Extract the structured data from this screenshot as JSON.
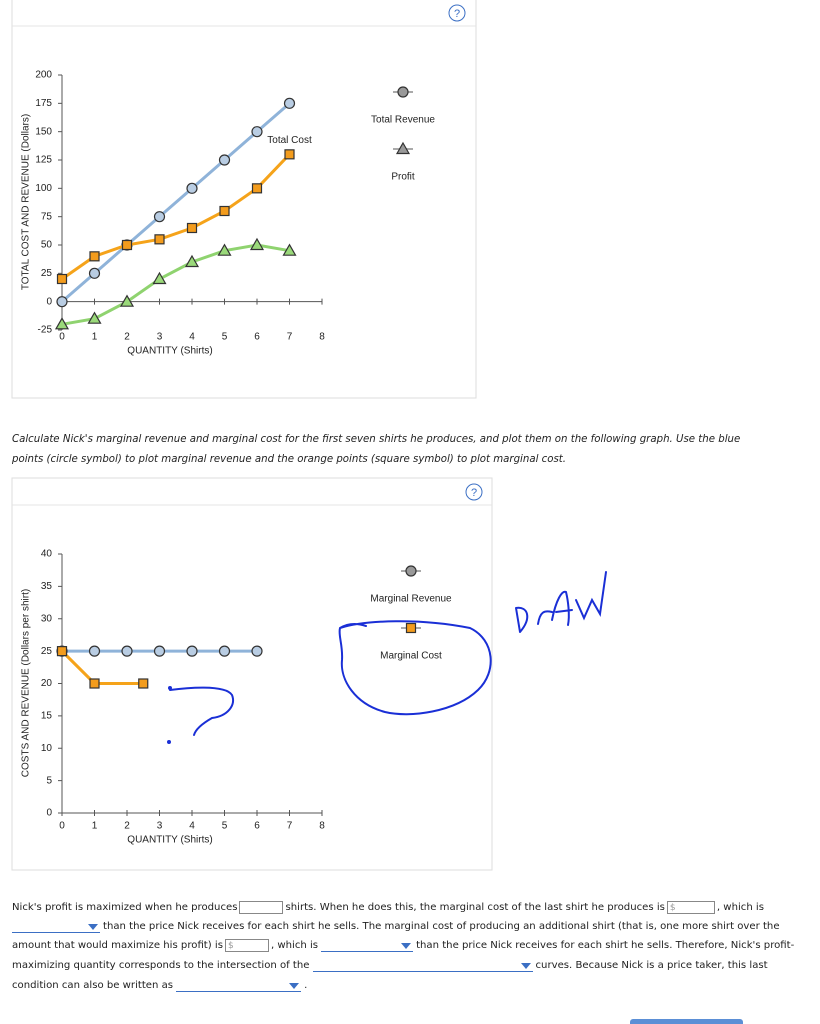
{
  "help_label": "?",
  "chart_data": [
    {
      "type": "line",
      "y_label": "TOTAL COST AND REVENUE (Dollars)",
      "x_label": "QUANTITY (Shirts)",
      "x": [
        0,
        1,
        2,
        3,
        4,
        5,
        6,
        7
      ],
      "xlim": [
        0,
        8
      ],
      "xticks": [
        0,
        1,
        2,
        3,
        4,
        5,
        6,
        7,
        8
      ],
      "ylim": [
        -25,
        200
      ],
      "yticks": [
        -25,
        0,
        25,
        50,
        75,
        100,
        125,
        150,
        175,
        200
      ],
      "series": [
        {
          "name": "Total Revenue",
          "color": "#8fb3d9",
          "marker": "circle",
          "label": "legend",
          "values": [
            0,
            25,
            50,
            75,
            100,
            125,
            150,
            175
          ]
        },
        {
          "name": "Total Cost",
          "color": "#f5a31a",
          "marker": "square",
          "label": "end",
          "values": [
            20,
            40,
            50,
            55,
            65,
            80,
            100,
            130
          ]
        },
        {
          "name": "Profit",
          "color": "#8fd36f",
          "marker": "triangle",
          "label": "legend",
          "values": [
            -20,
            -15,
            0,
            20,
            35,
            45,
            50,
            45
          ]
        }
      ]
    },
    {
      "type": "line",
      "y_label": "COSTS AND REVENUE (Dollars per shirt)",
      "x_label": "QUANTITY (Shirts)",
      "xlim": [
        0,
        8
      ],
      "xticks": [
        0,
        1,
        2,
        3,
        4,
        5,
        6,
        7,
        8
      ],
      "ylim": [
        0,
        40
      ],
      "yticks": [
        0,
        5,
        10,
        15,
        20,
        25,
        30,
        35,
        40
      ],
      "series": [
        {
          "name": "Marginal Revenue",
          "color": "#8fb3d9",
          "marker": "circle",
          "label": "legend",
          "x": [
            0,
            1,
            2,
            3,
            4,
            5,
            6
          ],
          "values": [
            25,
            25,
            25,
            25,
            25,
            25,
            25
          ]
        },
        {
          "name": "Marginal Cost",
          "color": "#f5a31a",
          "marker": "square",
          "label": "legend",
          "x": [
            0,
            1,
            2.5
          ],
          "values": [
            25,
            20,
            20
          ]
        }
      ]
    }
  ],
  "instructions": "Calculate Nick's marginal revenue and marginal cost for the first seven shirts he produces, and plot them on the following graph. Use the blue points (circle symbol) to plot marginal revenue and the orange points (square symbol) to plot marginal cost.",
  "currency": "$",
  "question": [
    "Nick's profit is maximized when he produces",
    "shirts. When he does this, the marginal cost of the last shirt he produces is",
    ", which is",
    "than the price Nick receives for each shirt he sells. The marginal cost of producing an additional shirt (that is, one more shirt over the",
    "amount that would maximize his profit) is",
    ", which is",
    "than the price Nick receives for each shirt he sells. Therefore, Nick's profit-",
    "maximizing quantity corresponds to the intersection of the",
    "curves. Because Nick is a price taker, this last",
    "condition can also be written as",
    "."
  ]
}
